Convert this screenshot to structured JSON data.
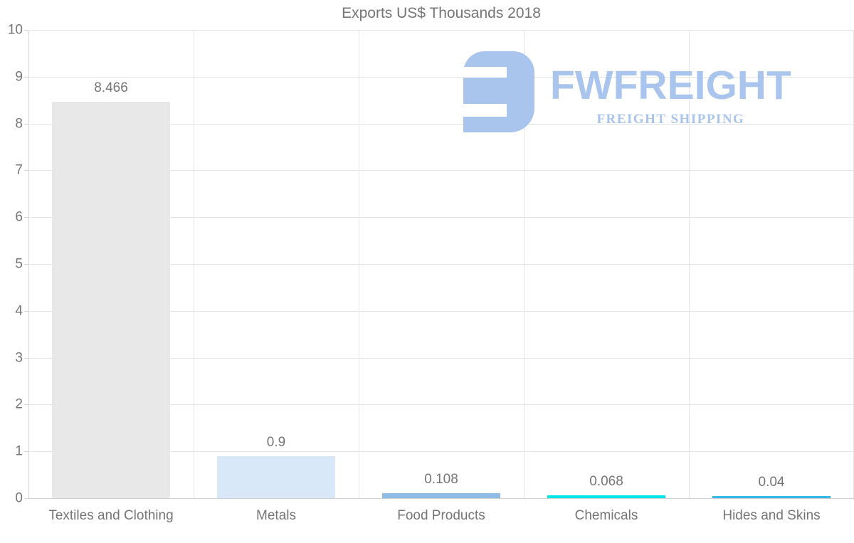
{
  "chart_data": {
    "type": "bar",
    "title": "Exports US$ Thousands 2018",
    "categories": [
      "Textiles and Clothing",
      "Metals",
      "Food Products",
      "Chemicals",
      "Hides and Skins"
    ],
    "values": [
      8.466,
      0.9,
      0.108,
      0.068,
      0.04
    ],
    "value_labels": [
      "8.466",
      "0.9",
      "0.108",
      "0.068",
      "0.04"
    ],
    "bar_colors": [
      "#e8e8e8",
      "#d8e8f9",
      "#8fbce5",
      "#00e5e7",
      "#35b8e8"
    ],
    "ylim": [
      0,
      10
    ],
    "yticks": [
      0,
      1,
      2,
      3,
      4,
      5,
      6,
      7,
      8,
      9,
      10
    ],
    "grid": true,
    "legend": "none",
    "xlabel": "",
    "ylabel": ""
  },
  "watermark": {
    "brand": "FWFREIGHT",
    "tagline": "FREIGHT SHIPPING",
    "color": "#a9c4ed"
  },
  "theme": {
    "text_color": "#757575",
    "gridline_color": "#e5e5e5",
    "axis_color": "#cfcfcf",
    "background": "#ffffff"
  }
}
